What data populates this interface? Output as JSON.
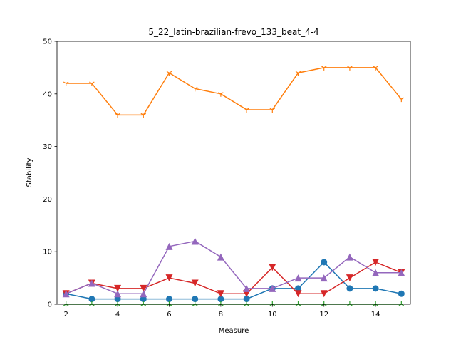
{
  "chart_data": {
    "type": "line",
    "title": "5_22_latin-brazilian-frevo_133_beat_4-4",
    "xlabel": "Measure",
    "ylabel": "Stability",
    "xlim": [
      1.65,
      15.35
    ],
    "ylim": [
      0,
      50
    ],
    "xticks": [
      2,
      4,
      6,
      8,
      10,
      12,
      14
    ],
    "yticks": [
      0,
      10,
      20,
      30,
      40,
      50
    ],
    "grid": false,
    "x": [
      2,
      3,
      4,
      5,
      6,
      7,
      8,
      9,
      10,
      11,
      12,
      13,
      14,
      15
    ],
    "series": [
      {
        "color": "#1f77b4",
        "marker": "circle",
        "values": [
          2,
          1,
          1,
          1,
          1,
          1,
          1,
          1,
          3,
          3,
          8,
          3,
          3,
          2
        ]
      },
      {
        "color": "#ff7f0e",
        "marker": "tri_down",
        "values": [
          42,
          42,
          36,
          36,
          44,
          41,
          40,
          37,
          37,
          44,
          45,
          45,
          45,
          39
        ]
      },
      {
        "color": "#2ca02c",
        "marker": "tri_up",
        "values": [
          0,
          0,
          0,
          0,
          0,
          0,
          0,
          0,
          0,
          0,
          0,
          0,
          0,
          0
        ]
      },
      {
        "color": "#d62728",
        "marker": "triangle_down",
        "values": [
          2,
          4,
          3,
          3,
          5,
          4,
          2,
          2,
          7,
          2,
          2,
          5,
          8,
          6
        ]
      },
      {
        "color": "#9467bd",
        "marker": "triangle_up",
        "values": [
          2,
          4,
          2,
          2,
          11,
          12,
          9,
          3,
          3,
          5,
          5,
          9,
          6,
          6
        ]
      }
    ]
  }
}
